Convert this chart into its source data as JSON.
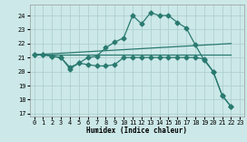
{
  "xlabel": "Humidex (Indice chaleur)",
  "xlim": [
    -0.5,
    23.5
  ],
  "ylim": [
    16.8,
    24.8
  ],
  "yticks": [
    17,
    18,
    19,
    20,
    21,
    22,
    23,
    24
  ],
  "xticks": [
    0,
    1,
    2,
    3,
    4,
    5,
    6,
    7,
    8,
    9,
    10,
    11,
    12,
    13,
    14,
    15,
    16,
    17,
    18,
    19,
    20,
    21,
    22,
    23
  ],
  "bg_color": "#cce8e8",
  "grid_color": "#aacccc",
  "line_color": "#2a7a70",
  "line1_x": [
    0,
    1,
    2,
    3,
    4,
    5,
    6,
    7,
    8,
    9,
    10,
    11,
    12,
    13,
    14,
    15,
    16,
    17,
    18,
    19,
    20,
    21,
    22
  ],
  "line1_y": [
    21.2,
    21.2,
    21.1,
    21.0,
    20.2,
    20.6,
    21.0,
    21.1,
    21.7,
    22.1,
    22.4,
    24.0,
    23.4,
    24.2,
    24.0,
    24.0,
    23.5,
    23.1,
    21.9,
    20.8,
    20.0,
    18.3,
    17.5
  ],
  "line2_x": [
    0,
    1,
    2,
    3,
    4,
    5,
    6,
    7,
    8,
    9,
    10,
    11,
    12,
    13,
    14,
    15,
    16,
    17,
    18,
    19,
    20,
    21,
    22
  ],
  "line2_y": [
    21.2,
    21.2,
    21.1,
    21.0,
    20.3,
    20.6,
    20.5,
    20.4,
    20.4,
    20.5,
    21.0,
    21.0,
    21.0,
    21.0,
    21.0,
    21.0,
    21.0,
    21.0,
    21.0,
    20.9,
    20.0,
    18.3,
    17.5
  ],
  "line3_x": [
    0,
    22
  ],
  "line3_y": [
    21.2,
    22.0
  ],
  "line4_x": [
    0,
    22
  ],
  "line4_y": [
    21.2,
    21.2
  ],
  "marker_size": 2.5,
  "linewidth": 0.9
}
